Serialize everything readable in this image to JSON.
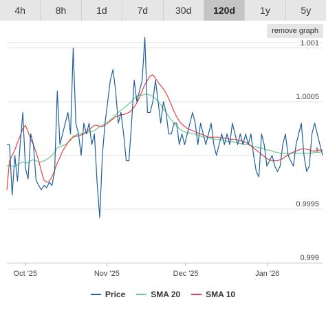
{
  "range_tabs": [
    {
      "label": "4h",
      "active": false
    },
    {
      "label": "8h",
      "active": false
    },
    {
      "label": "1d",
      "active": false
    },
    {
      "label": "7d",
      "active": false
    },
    {
      "label": "30d",
      "active": false
    },
    {
      "label": "120d",
      "active": true
    },
    {
      "label": "1y",
      "active": false
    },
    {
      "label": "5y",
      "active": false
    }
  ],
  "remove_graph_label": "remove graph",
  "colors": {
    "price": "#1f5f9a",
    "sma20": "#66cc88",
    "sma10": "#e84040"
  },
  "chart_data": {
    "type": "line",
    "x_start": "2025-09-24",
    "x_end": "2026-01-22",
    "x_ticks": [
      {
        "label": "Oct '25",
        "date": "2025-10-01"
      },
      {
        "label": "Nov '25",
        "date": "2025-11-01"
      },
      {
        "label": "Dec '25",
        "date": "2025-12-01"
      },
      {
        "label": "Jan '26",
        "date": "2026-01-01"
      }
    ],
    "ylim": [
      0.999,
      1.00105
    ],
    "y_ticks": [
      {
        "label": "0.999",
        "value": 0.999
      },
      {
        "label": "0.9995",
        "value": 0.9995
      },
      {
        "label": "1",
        "value": 1.0
      },
      {
        "label": "1.0005",
        "value": 1.0005
      },
      {
        "label": "1.001",
        "value": 1.001
      }
    ],
    "grid": true,
    "legend_position": "bottom",
    "series": [
      {
        "name": "Price",
        "color": "#1f5f9a",
        "values": [
          1.0001,
          1.0001,
          0.99963,
          1.0,
          0.99976,
          1.0001,
          1.0004,
          0.99988,
          0.99978,
          1.0002,
          1.0001,
          0.99977,
          0.99972,
          0.99968,
          0.99972,
          0.9997,
          0.99975,
          0.99972,
          0.99985,
          1.0006,
          1.0001,
          1.0002,
          1.0003,
          1.0004,
          1.0002,
          1.001,
          1.0003,
          1.0002,
          1.0,
          1.0003,
          1.0002,
          1.0003,
          1.0001,
          1.0002,
          0.99975,
          0.99942,
          1.0,
          1.0003,
          1.0005,
          1.0007,
          1.0008,
          1.0006,
          1.0003,
          1.0004,
          1.0002,
          0.99995,
          0.99995,
          1.0003,
          1.0007,
          1.0005,
          1.0006,
          1.0007,
          1.0011,
          1.0004,
          1.0004,
          1.0005,
          1.0007,
          1.0005,
          1.0003,
          1.0005,
          1.0004,
          1.0002,
          1.0002,
          1.0003,
          1.0003,
          1.0001,
          1.0002,
          1.0001,
          1.0002,
          1.0003,
          1.0004,
          1.0003,
          1.0001,
          1.0003,
          1.0002,
          1.0001,
          1.0002,
          1.0003,
          1.0001,
          1.0,
          1.0001,
          1.0002,
          1.0001,
          1.0002,
          1.0001,
          1.0003,
          1.0002,
          1.0001,
          1.0002,
          1.0001,
          1.0002,
          1.0001,
          1.0002,
          1.0,
          0.99985,
          0.9998,
          1.0002,
          1.0001,
          0.9999,
          0.99995,
          1.0,
          0.9999,
          0.99985,
          0.9999,
          1.0001,
          1.0002,
          1.0,
          0.99995,
          0.9999,
          1.0001,
          1.0002,
          1.0003,
          1.0,
          0.99985,
          0.9999,
          1.0002,
          1.0003,
          1.0002,
          1.0001,
          1.0
        ]
      },
      {
        "name": "SMA 20",
        "color": "#66cc88",
        "values": [
          0.9999,
          0.99991,
          0.9999,
          0.9999,
          0.99991,
          0.99993,
          0.99994,
          0.99993,
          0.99993,
          0.99995,
          0.99996,
          0.99995,
          0.99994,
          0.99994,
          0.99995,
          0.99996,
          0.99998,
          1.0,
          1.00003,
          1.00007,
          1.00008,
          1.00009,
          1.0001,
          1.00012,
          1.00014,
          1.00018,
          1.00019,
          1.0002,
          1.0002,
          1.00021,
          1.00021,
          1.00022,
          1.00022,
          1.00023,
          1.00025,
          1.00027,
          1.00028,
          1.0003,
          1.00031,
          1.00033,
          1.00035,
          1.00038,
          1.0004,
          1.00042,
          1.00044,
          1.00046,
          1.00048,
          1.0005,
          1.00053,
          1.00055,
          1.00056,
          1.00056,
          1.00057,
          1.00057,
          1.00056,
          1.00055,
          1.00053,
          1.0005,
          1.00047,
          1.00043,
          1.0004,
          1.00036,
          1.00033,
          1.0003,
          1.00027,
          1.00025,
          1.00023,
          1.00022,
          1.00021,
          1.00021,
          1.0002,
          1.0002,
          1.00019,
          1.00018,
          1.00017,
          1.00017,
          1.00016,
          1.00016,
          1.00015,
          1.00015,
          1.00015,
          1.00014,
          1.00014,
          1.00013,
          1.00013,
          1.00013,
          1.00012,
          1.00012,
          1.00011,
          1.00011,
          1.0001,
          1.0001,
          1.00009,
          1.00008,
          1.00008,
          1.00007,
          1.00007,
          1.00006,
          1.00005,
          1.00005,
          1.00004,
          1.00003,
          1.00003,
          1.00002,
          1.00002,
          1.00002,
          1.00002,
          1.00002,
          1.00002,
          1.00002,
          1.00002,
          1.00002,
          1.00002,
          1.00002,
          1.00002,
          1.00002,
          1.00003,
          1.00003,
          1.00003,
          1.00004
        ]
      },
      {
        "name": "SMA 10",
        "color": "#e84040",
        "values": [
          0.99968,
          0.99995,
          1.0,
          1.00005,
          1.00012,
          1.00018,
          1.00025,
          1.00028,
          1.00022,
          1.00015,
          1.0001,
          1.00003,
          0.99995,
          0.99985,
          0.99977,
          0.99975,
          0.99976,
          0.9998,
          0.99986,
          0.99993,
          0.99998,
          1.00004,
          1.00008,
          1.00012,
          1.00015,
          1.00017,
          1.00018,
          1.00018,
          1.00019,
          1.0002,
          1.00022,
          1.00024,
          1.00026,
          1.00028,
          1.00028,
          1.00027,
          1.00027,
          1.00028,
          1.0003,
          1.00032,
          1.00034,
          1.00036,
          1.00037,
          1.00038,
          1.00038,
          1.00039,
          1.0004,
          1.00042,
          1.00045,
          1.00049,
          1.00054,
          1.0006,
          1.00066,
          1.0007,
          1.00074,
          1.00075,
          1.00072,
          1.00068,
          1.00065,
          1.00062,
          1.00058,
          1.00053,
          1.00047,
          1.00041,
          1.00036,
          1.00032,
          1.00029,
          1.00027,
          1.00025,
          1.00024,
          1.00023,
          1.00022,
          1.00021,
          1.0002,
          1.00019,
          1.00018,
          1.00017,
          1.00017,
          1.00017,
          1.00017,
          1.00017,
          1.00016,
          1.00016,
          1.00016,
          1.00015,
          1.00015,
          1.00015,
          1.00014,
          1.00014,
          1.00013,
          1.00012,
          1.00011,
          1.00009,
          1.00007,
          1.00005,
          1.00003,
          1.00001,
          0.99999,
          0.99997,
          0.99996,
          0.99995,
          0.99995,
          0.99995,
          0.99996,
          0.99997,
          0.99999,
          1.0,
          1.00002,
          1.00003,
          1.00004,
          1.00005,
          1.00006,
          1.00006,
          1.00006,
          1.00005,
          1.00004,
          1.00004,
          1.00005,
          1.00005,
          1.00005
        ]
      }
    ]
  }
}
